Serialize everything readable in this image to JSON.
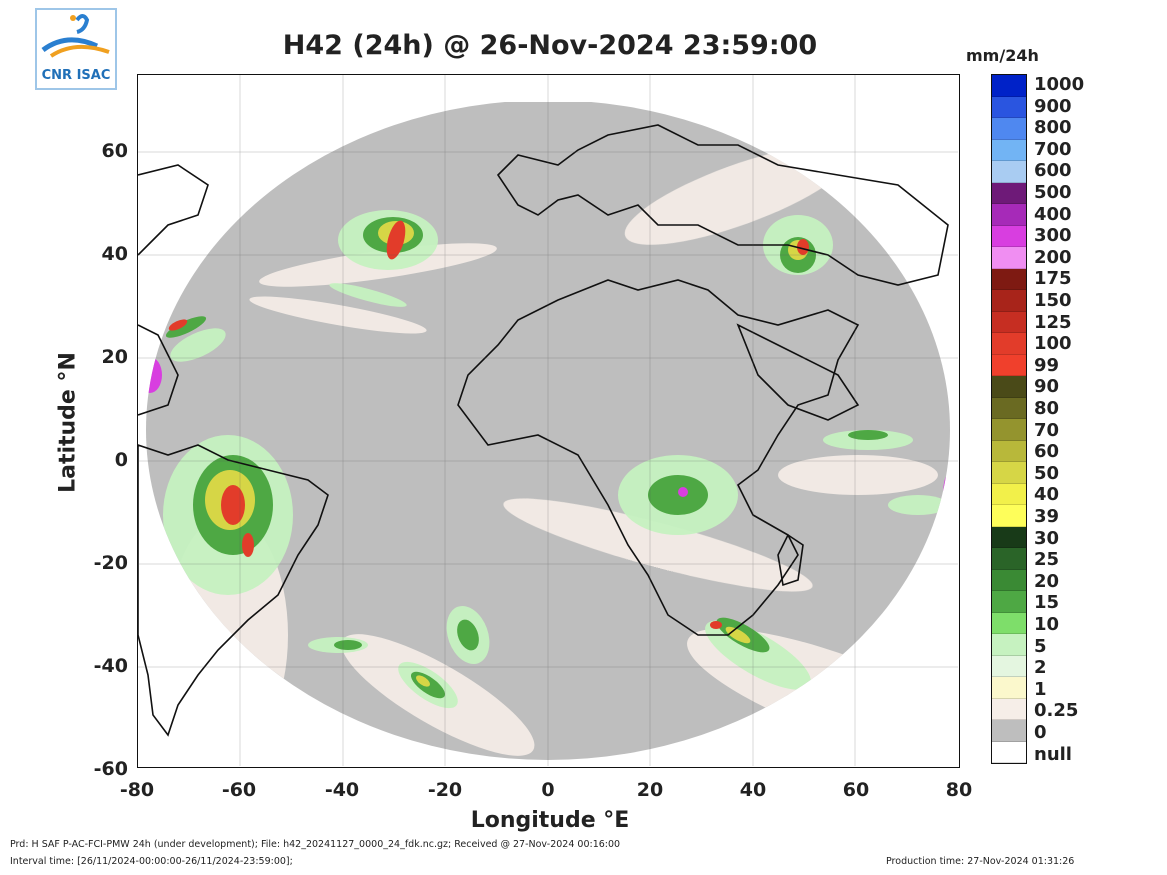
{
  "title": "H42 (24h) @ 26-Nov-2024 23:59:00",
  "units": "mm/24h",
  "logo": {
    "text": "CNR ISAC"
  },
  "axes": {
    "xlabel": "Longitude °E",
    "ylabel": "Latitude °N",
    "xticks": [
      "-80",
      "-60",
      "-40",
      "-20",
      "0",
      "20",
      "40",
      "60",
      "80"
    ],
    "yticks": [
      "60",
      "40",
      "20",
      "0",
      "-20",
      "-40",
      "-60"
    ],
    "lon_range": [
      -80,
      80
    ],
    "lat_range": [
      -60,
      75
    ]
  },
  "colorbar": [
    {
      "label": "1000",
      "color": "#0022c8"
    },
    {
      "label": "900",
      "color": "#2a55e0"
    },
    {
      "label": "800",
      "color": "#4f88f0"
    },
    {
      "label": "700",
      "color": "#72b4f4"
    },
    {
      "label": "600",
      "color": "#a9ccf2"
    },
    {
      "label": "500",
      "color": "#6e1a78"
    },
    {
      "label": "400",
      "color": "#a62ab8"
    },
    {
      "label": "300",
      "color": "#d83ee0"
    },
    {
      "label": "200",
      "color": "#f08ef2"
    },
    {
      "label": "175",
      "color": "#7e1a12"
    },
    {
      "label": "150",
      "color": "#a8241a"
    },
    {
      "label": "125",
      "color": "#c62e22"
    },
    {
      "label": "100",
      "color": "#e23c2a"
    },
    {
      "label": "99",
      "color": "#f0402c"
    },
    {
      "label": "90",
      "color": "#4a4a18"
    },
    {
      "label": "80",
      "color": "#6a6a22"
    },
    {
      "label": "70",
      "color": "#94942e"
    },
    {
      "label": "60",
      "color": "#b8b83a"
    },
    {
      "label": "50",
      "color": "#d6d646"
    },
    {
      "label": "40",
      "color": "#f2f04a"
    },
    {
      "label": "39",
      "color": "#fefe5a"
    },
    {
      "label": "30",
      "color": "#183a18"
    },
    {
      "label": "25",
      "color": "#2a6428"
    },
    {
      "label": "20",
      "color": "#3a8a34"
    },
    {
      "label": "15",
      "color": "#4ea844"
    },
    {
      "label": "10",
      "color": "#7ede6a"
    },
    {
      "label": "5",
      "color": "#c6f2c0"
    },
    {
      "label": "2",
      "color": "#e4f6e0"
    },
    {
      "label": "1",
      "color": "#fbf8cc"
    },
    {
      "label": "0.25",
      "color": "#f6eee8"
    },
    {
      "label": "0",
      "color": "#bebebe"
    },
    {
      "label": "null",
      "color": "#ffffff"
    }
  ],
  "footer": {
    "line1": "Prd: H SAF P-AC-FCI-PMW 24h (under development); File: h42_20241127_0000_24_fdk.nc.gz; Received @ 27-Nov-2024 00:16:00",
    "line2": "Interval time: [26/11/2024-00:00:00-26/11/2024-23:59:00];",
    "production": "Production time: 27-Nov-2024 01:31:26"
  }
}
